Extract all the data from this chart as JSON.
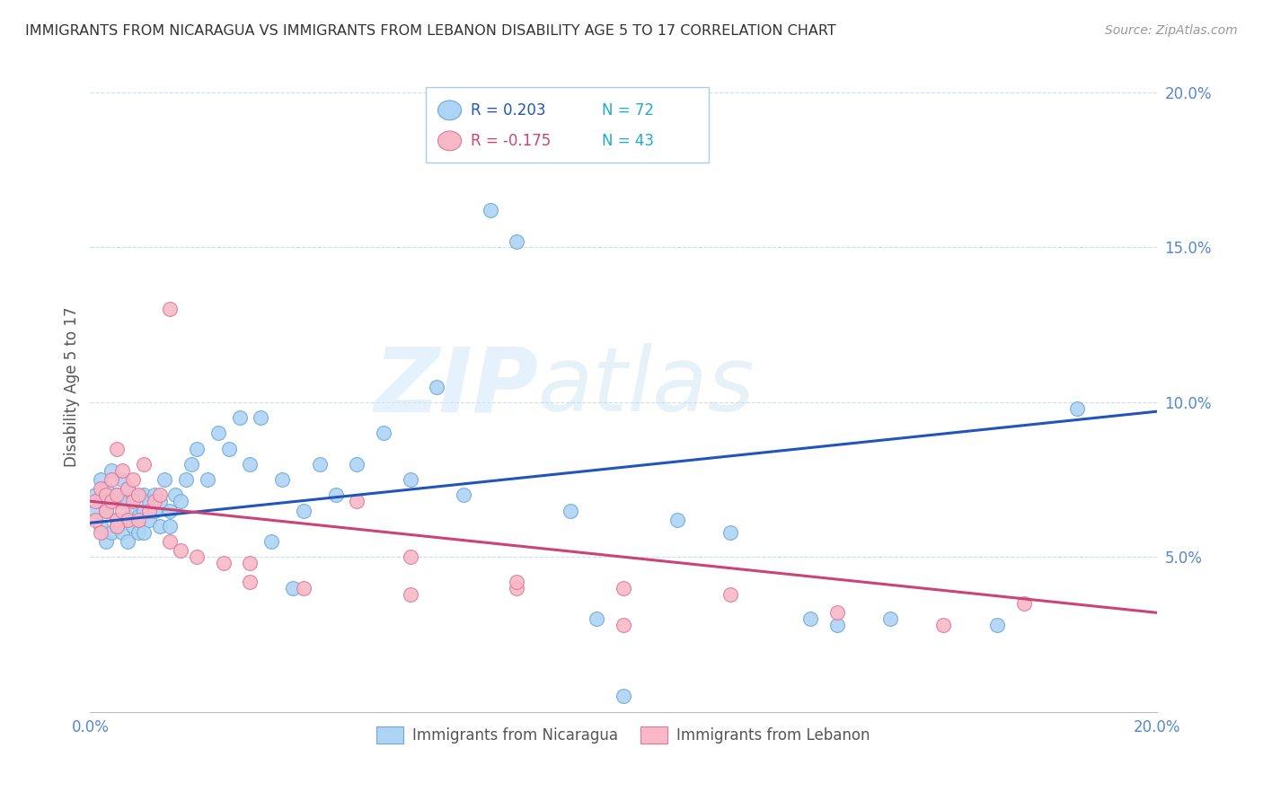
{
  "title": "IMMIGRANTS FROM NICARAGUA VS IMMIGRANTS FROM LEBANON DISABILITY AGE 5 TO 17 CORRELATION CHART",
  "source": "Source: ZipAtlas.com",
  "ylabel": "Disability Age 5 to 17",
  "xlim": [
    0.0,
    0.2
  ],
  "ylim": [
    0.0,
    0.21
  ],
  "nicaragua_color": "#aed4f5",
  "nicaragua_edge": "#6aaad4",
  "lebanon_color": "#f8b8c8",
  "lebanon_edge": "#e07898",
  "nicaragua_R": 0.203,
  "nicaragua_N": 72,
  "lebanon_R": -0.175,
  "lebanon_N": 43,
  "watermark_zip": "ZIP",
  "watermark_atlas": "atlas",
  "legend_label_nic": "Immigrants from Nicaragua",
  "legend_label_leb": "Immigrants from Lebanon",
  "nic_line_color": "#2255bb",
  "leb_line_color": "#cc4477",
  "tick_color": "#5588cc",
  "grid_color": "#ccdded",
  "nicaragua_x": [
    0.001,
    0.001,
    0.002,
    0.002,
    0.002,
    0.003,
    0.003,
    0.003,
    0.004,
    0.004,
    0.004,
    0.005,
    0.005,
    0.005,
    0.006,
    0.006,
    0.006,
    0.007,
    0.007,
    0.007,
    0.007,
    0.008,
    0.008,
    0.008,
    0.009,
    0.009,
    0.01,
    0.01,
    0.01,
    0.011,
    0.011,
    0.012,
    0.012,
    0.013,
    0.013,
    0.014,
    0.015,
    0.015,
    0.016,
    0.017,
    0.018,
    0.019,
    0.02,
    0.022,
    0.024,
    0.026,
    0.028,
    0.03,
    0.032,
    0.034,
    0.036,
    0.038,
    0.04,
    0.043,
    0.046,
    0.05,
    0.055,
    0.06,
    0.065,
    0.07,
    0.075,
    0.08,
    0.09,
    0.1,
    0.11,
    0.12,
    0.135,
    0.15,
    0.17,
    0.185,
    0.14,
    0.095
  ],
  "nicaragua_y": [
    0.065,
    0.07,
    0.06,
    0.068,
    0.075,
    0.055,
    0.065,
    0.072,
    0.058,
    0.068,
    0.078,
    0.062,
    0.07,
    0.06,
    0.068,
    0.058,
    0.075,
    0.062,
    0.068,
    0.055,
    0.072,
    0.065,
    0.06,
    0.07,
    0.063,
    0.058,
    0.065,
    0.07,
    0.058,
    0.068,
    0.062,
    0.065,
    0.07,
    0.06,
    0.068,
    0.075,
    0.065,
    0.06,
    0.07,
    0.068,
    0.075,
    0.08,
    0.085,
    0.075,
    0.09,
    0.085,
    0.095,
    0.08,
    0.095,
    0.055,
    0.075,
    0.04,
    0.065,
    0.08,
    0.07,
    0.08,
    0.09,
    0.075,
    0.105,
    0.07,
    0.162,
    0.152,
    0.065,
    0.005,
    0.062,
    0.058,
    0.03,
    0.03,
    0.028,
    0.098,
    0.028,
    0.03
  ],
  "lebanon_x": [
    0.001,
    0.001,
    0.002,
    0.002,
    0.003,
    0.003,
    0.004,
    0.004,
    0.005,
    0.005,
    0.005,
    0.006,
    0.006,
    0.007,
    0.007,
    0.008,
    0.008,
    0.009,
    0.009,
    0.01,
    0.011,
    0.012,
    0.013,
    0.015,
    0.017,
    0.02,
    0.025,
    0.03,
    0.04,
    0.05,
    0.06,
    0.08,
    0.1,
    0.12,
    0.14,
    0.16,
    0.175,
    0.06,
    0.08,
    0.1,
    0.03,
    0.015,
    0.005
  ],
  "lebanon_y": [
    0.062,
    0.068,
    0.058,
    0.072,
    0.065,
    0.07,
    0.068,
    0.075,
    0.062,
    0.07,
    0.085,
    0.065,
    0.078,
    0.062,
    0.072,
    0.068,
    0.075,
    0.062,
    0.07,
    0.08,
    0.065,
    0.068,
    0.07,
    0.055,
    0.052,
    0.05,
    0.048,
    0.042,
    0.04,
    0.068,
    0.038,
    0.04,
    0.028,
    0.038,
    0.032,
    0.028,
    0.035,
    0.05,
    0.042,
    0.04,
    0.048,
    0.13,
    0.06
  ]
}
